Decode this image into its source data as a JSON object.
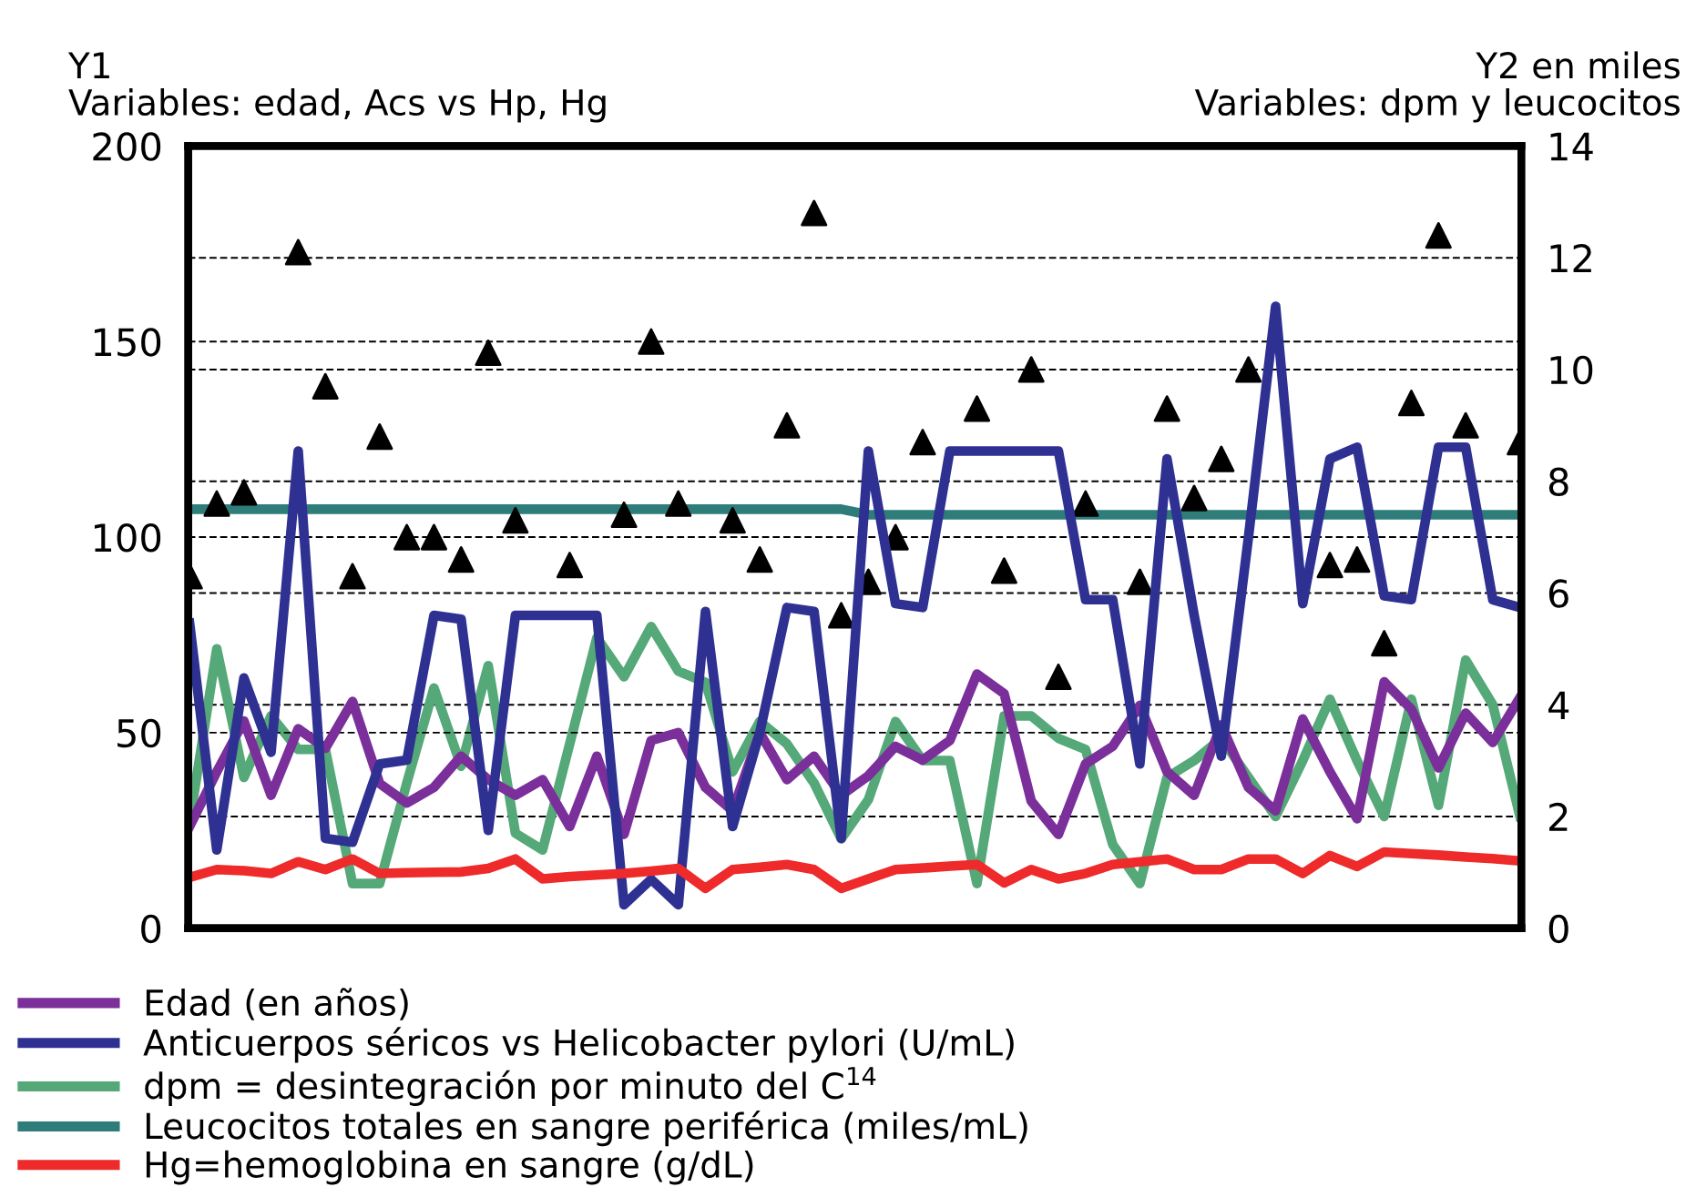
{
  "chart_data": {
    "type": "line",
    "ylabel": "Y1\nVariables: edad, Acs vs Hp, Hg",
    "y2label": "Y2 en miles\nVariables: dpm y leucocitos",
    "categories": [
      null,
      null,
      null,
      null,
      null,
      null,
      null,
      null,
      null,
      null,
      null,
      null,
      null,
      null,
      null,
      null,
      null,
      null,
      null,
      null,
      null,
      null,
      null,
      null,
      null,
      null,
      null,
      null,
      null,
      null,
      null,
      null,
      null,
      null,
      null,
      null,
      null,
      null,
      null,
      null,
      null,
      null,
      null,
      null,
      null,
      null,
      null,
      null,
      null,
      null
    ],
    "ylim": [
      0,
      200
    ],
    "yticks": [
      0,
      50,
      100,
      150,
      200
    ],
    "y2lim": [
      0,
      14
    ],
    "y2ticks": [
      0,
      2,
      4,
      6,
      8,
      10,
      12,
      14
    ],
    "grid": "y",
    "legend": "bottom",
    "line_style": "solid",
    "series": [
      {
        "name": "Edad (en años)",
        "color": "#7b2f9a",
        "values": [
          26,
          40,
          53,
          34,
          51,
          46,
          58,
          37,
          32,
          36,
          44,
          38,
          34,
          38,
          26,
          44,
          24,
          48,
          50,
          36,
          30,
          50,
          38,
          44,
          34,
          39,
          46.5,
          43,
          48,
          65,
          60,
          32.5,
          24,
          42,
          46.5,
          57,
          40,
          34,
          52,
          36,
          30,
          53.5,
          40,
          28,
          63,
          56,
          41,
          55,
          47.5,
          59
        ]
      },
      {
        "name": "Anticuerpos séricos vs Helicobacter pylori (U/mL)",
        "color": "#2e3192",
        "values": [
          78,
          20,
          64,
          45,
          122,
          23,
          22,
          42,
          43,
          80,
          79,
          25,
          80,
          80,
          80,
          80,
          6,
          12.5,
          6,
          81,
          26,
          50,
          82,
          81,
          23,
          122,
          83,
          82,
          122,
          122,
          122,
          122,
          122,
          84,
          84,
          42,
          120,
          80,
          44,
          100,
          159,
          83,
          120,
          123,
          85,
          84,
          123,
          123,
          84,
          82
        ]
      },
      {
        "name": "dpm = desintegración por minuto del C$^{14}$",
        "color": "#55a878",
        "axis": "y2",
        "values": [
          1.9,
          5.0,
          2.7,
          3.8,
          3.2,
          3.2,
          0.8,
          0.8,
          2.6,
          4.3,
          2.9,
          4.7,
          1.7,
          1.4,
          3.3,
          5.2,
          4.5,
          5.4,
          4.6,
          4.4,
          2.8,
          3.7,
          3.3,
          2.6,
          1.6,
          2.3,
          3.7,
          3.0,
          3.0,
          0.8,
          3.8,
          3.8,
          3.4,
          3.2,
          1.5,
          0.8,
          2.7,
          3.0,
          3.4,
          2.7,
          2.0,
          3.0,
          4.1,
          3.0,
          2.0,
          4.1,
          2.2,
          4.8,
          4.0,
          2.0
        ]
      },
      {
        "name": "Leucocitos totales en sangre periférica (miles/mL)",
        "color": "#2e7d7a",
        "axis": "y2",
        "values": [
          7.5,
          7.5,
          7.5,
          7.5,
          7.5,
          7.5,
          7.5,
          7.5,
          7.5,
          7.5,
          7.5,
          7.5,
          7.5,
          7.5,
          7.5,
          7.5,
          7.5,
          7.5,
          7.5,
          7.5,
          7.5,
          7.5,
          7.5,
          7.5,
          7.5,
          7.4,
          7.4,
          7.4,
          7.4,
          7.4,
          7.4,
          7.4,
          7.4,
          7.4,
          7.4,
          7.4,
          7.4,
          7.4,
          7.4,
          7.4,
          7.4,
          7.4,
          7.4,
          7.4,
          7.4,
          7.4,
          7.4,
          7.4,
          7.4,
          7.4
        ]
      },
      {
        "name": "Hg=hemoglobina en sangre (g/dL)",
        "color": "#ee2a2a",
        "values": [
          13,
          15,
          14.7,
          14,
          17,
          15,
          17.7,
          14,
          14.2,
          14.3,
          14.4,
          15.3,
          17.7,
          12.6,
          13.2,
          13.6,
          14,
          14.6,
          15.3,
          10.2,
          15,
          15.6,
          16.3,
          15,
          10.2,
          12.6,
          15,
          15.4,
          15.9,
          16.3,
          11.6,
          15,
          12.6,
          14,
          16.3,
          17,
          17.7,
          15,
          15,
          17.7,
          17.7,
          14,
          18.6,
          15.8,
          19.5,
          19.1,
          18.7,
          18.2,
          17.8,
          17.2
        ]
      },
      {
        "type": "scatter",
        "marker": "triangle",
        "color": "#000000",
        "axis": "y2",
        "values": [
          6.3,
          7.6,
          7.8,
          null,
          12.1,
          9.7,
          6.3,
          8.8,
          7.0,
          7.0,
          6.6,
          10.3,
          7.3,
          null,
          6.5,
          null,
          7.4,
          10.5,
          7.6,
          null,
          7.3,
          6.6,
          9.0,
          12.8,
          5.6,
          6.2,
          7.0,
          8.7,
          null,
          9.3,
          6.4,
          10.0,
          4.5,
          7.6,
          null,
          6.2,
          9.3,
          7.7,
          8.4,
          10.0,
          null,
          null,
          6.5,
          6.6,
          5.1,
          9.4,
          12.4,
          9.0,
          null,
          8.7
        ]
      }
    ]
  }
}
